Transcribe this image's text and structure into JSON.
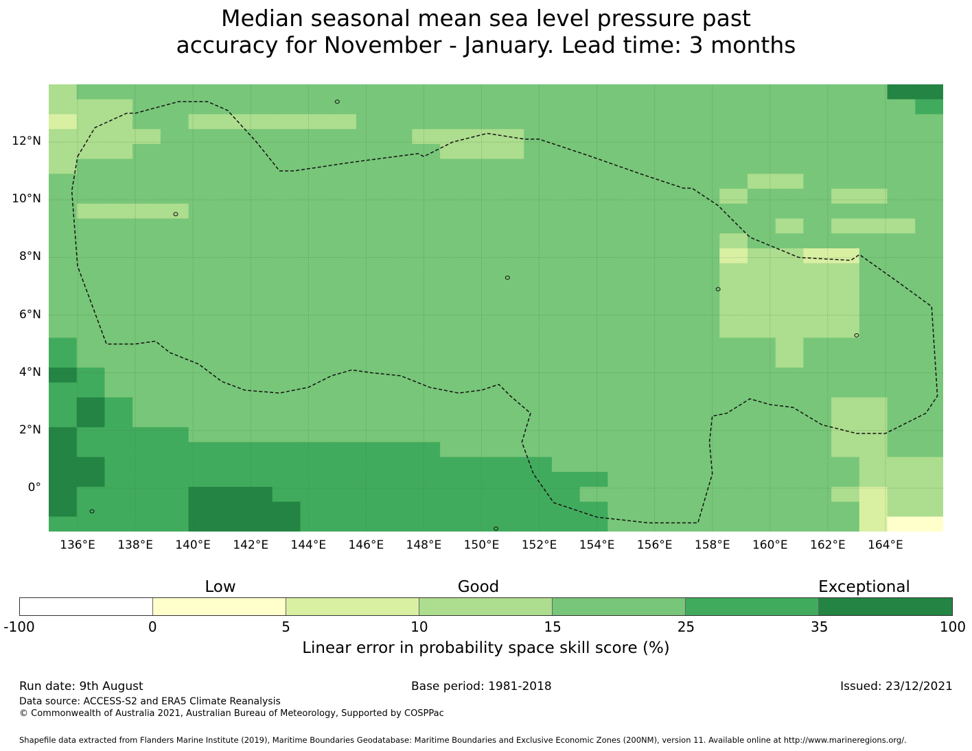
{
  "title": {
    "line1": "Median seasonal mean sea level pressure past",
    "line2": "accuracy for November - January. Lead time: 3 months"
  },
  "map": {
    "lon_range": [
      135,
      166
    ],
    "lat_range": [
      -1.5,
      14
    ],
    "x_ticks": [
      "136°E",
      "138°E",
      "140°E",
      "142°E",
      "144°E",
      "146°E",
      "148°E",
      "150°E",
      "152°E",
      "154°E",
      "156°E",
      "158°E",
      "160°E",
      "162°E",
      "164°E"
    ],
    "y_ticks": [
      "12°N",
      "10°N",
      "8°N",
      "6°N",
      "4°N",
      "2°N",
      "0°"
    ],
    "boundary_style": "black dashed line",
    "gridlines": "on"
  },
  "categories": {
    "low": "Low",
    "good": "Good",
    "exceptional": "Exceptional"
  },
  "colorbar": {
    "ticks": [
      "-100",
      "0",
      "5",
      "10",
      "15",
      "25",
      "35",
      "100"
    ],
    "colors": [
      "#ffffff",
      "#ffffcc",
      "#d9f0a3",
      "#addd8e",
      "#78c679",
      "#41ab5d",
      "#238443"
    ],
    "label": "Linear error in probability space skill score (%)"
  },
  "footer": {
    "run_date": "Run date: 9th August",
    "base_period": "Base period: 1981-2018",
    "issued": "Issued: 23/12/2021",
    "data_source": "Data source: ACCESS-S2 and ERA5 Climate Reanalysis",
    "copyright": "© Commonwealth of Australia 2021, Australian Bureau of Meteorology, Supported by COSPPac",
    "shapefile": "Shapefile data extracted from Flanders Marine Institute (2019), Maritime Boundaries Geodatabase: Maritime Boundaries and Exclusive Economic Zones (200NM), version 11. Available online at http://www.marineregions.org/."
  },
  "chart_data": {
    "type": "heatmap",
    "x": "longitude (°E)",
    "y": "latitude (°N)",
    "scale_bins": [
      -100,
      0,
      5,
      10,
      15,
      25,
      35,
      100
    ],
    "grid_rows_north_to_south": [
      "34444444444444444444444444444466",
      "33344444444444444444444444444445",
      "23344333333444444444444444444444",
      "33334444444443333444444444444444",
      "33344444444444333444444444444444",
      "34444444444444444444444444444444",
      "44444444444444444444444443344444",
      "44444444444444444444444434443344",
      "43333444444444444444444444444444",
      "44444444444444444444444444343334",
      "44444444444444444444444434444444",
      "44444444444444444444444423322444",
      "44444444444444444444444433333444",
      "44444444444444444444444433333444",
      "44444444444444444444444433333444",
      "44444444444444444444444433333444",
      "44444444444444444444444433333444",
      "54444444444444444444444444344444",
      "54444444444444444444444444344444",
      "65444444444444444444444444444444",
      "55444444444444444444444444444444",
      "56544444444444444444444444443344",
      "56544444444444444444444444443344",
      "65555444444444444444444444443344",
      "65555555555555444444444444443344",
      "66555555555555555544444444444333",
      "66555555555555555555444444444333",
      "65555666555555555554444444443233",
      "65555666655555555555444444444233",
      "55555666655555555555444444444211"
    ],
    "grid_note": "digits are colorbar bin indices 0..6 (0 = -100 to 0, 6 = 35 to 100)"
  }
}
